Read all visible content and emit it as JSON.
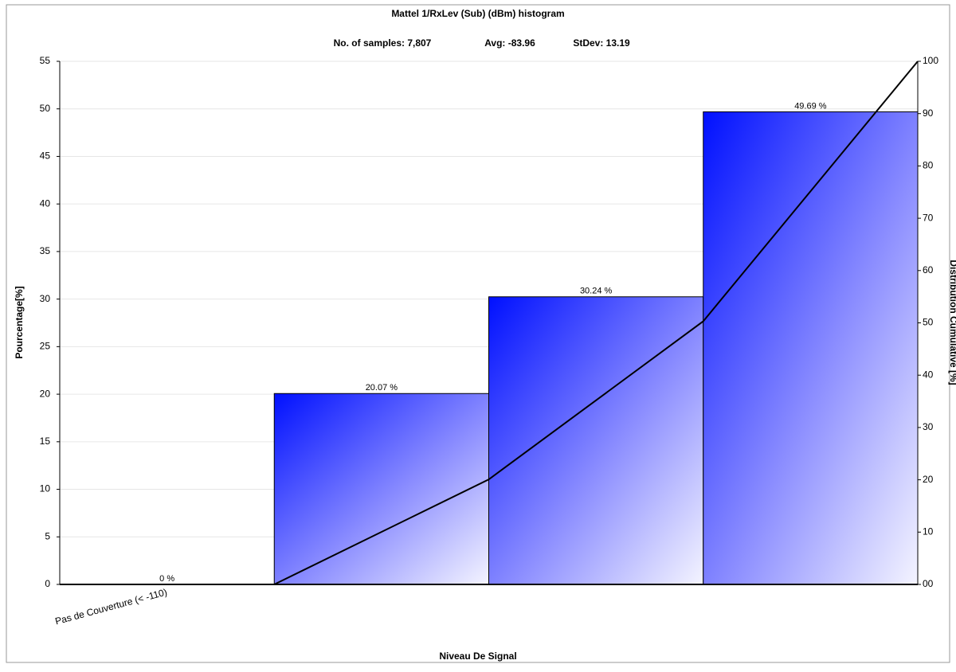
{
  "chart_data": {
    "type": "bar",
    "title": "Mattel 1/RxLev (Sub) (dBm) histogram",
    "stats": [
      "No. of samples: 7,807",
      "Avg: -83.96",
      "StDev: 13.19"
    ],
    "xlabel": "Niveau De Signal",
    "ylabel": "Pourcentage[%]",
    "y2label": "Distribution Cumulative [%]",
    "categories": [
      "Pas de Couverture (< -110)",
      null,
      null,
      null
    ],
    "series": [
      {
        "color": "#0000ff",
        "values": [
          0,
          20.07,
          30.24,
          49.69
        ],
        "value_labels": [
          "0 %",
          "20.07 %",
          "30.24 %",
          "49.69 %"
        ]
      },
      {
        "color": "#000000",
        "axis": "y2",
        "values": [
          0,
          20.07,
          50.31,
          100
        ]
      }
    ],
    "ylim": [
      0,
      55
    ],
    "yticks": [
      0,
      5,
      10,
      15,
      20,
      25,
      30,
      35,
      40,
      45,
      50,
      55
    ],
    "y2lim": [
      0,
      100
    ],
    "y2ticks": [
      {
        "value": 0,
        "label": "00"
      },
      10,
      20,
      30,
      40,
      50,
      60,
      70,
      80,
      90,
      100
    ],
    "grid": true
  }
}
